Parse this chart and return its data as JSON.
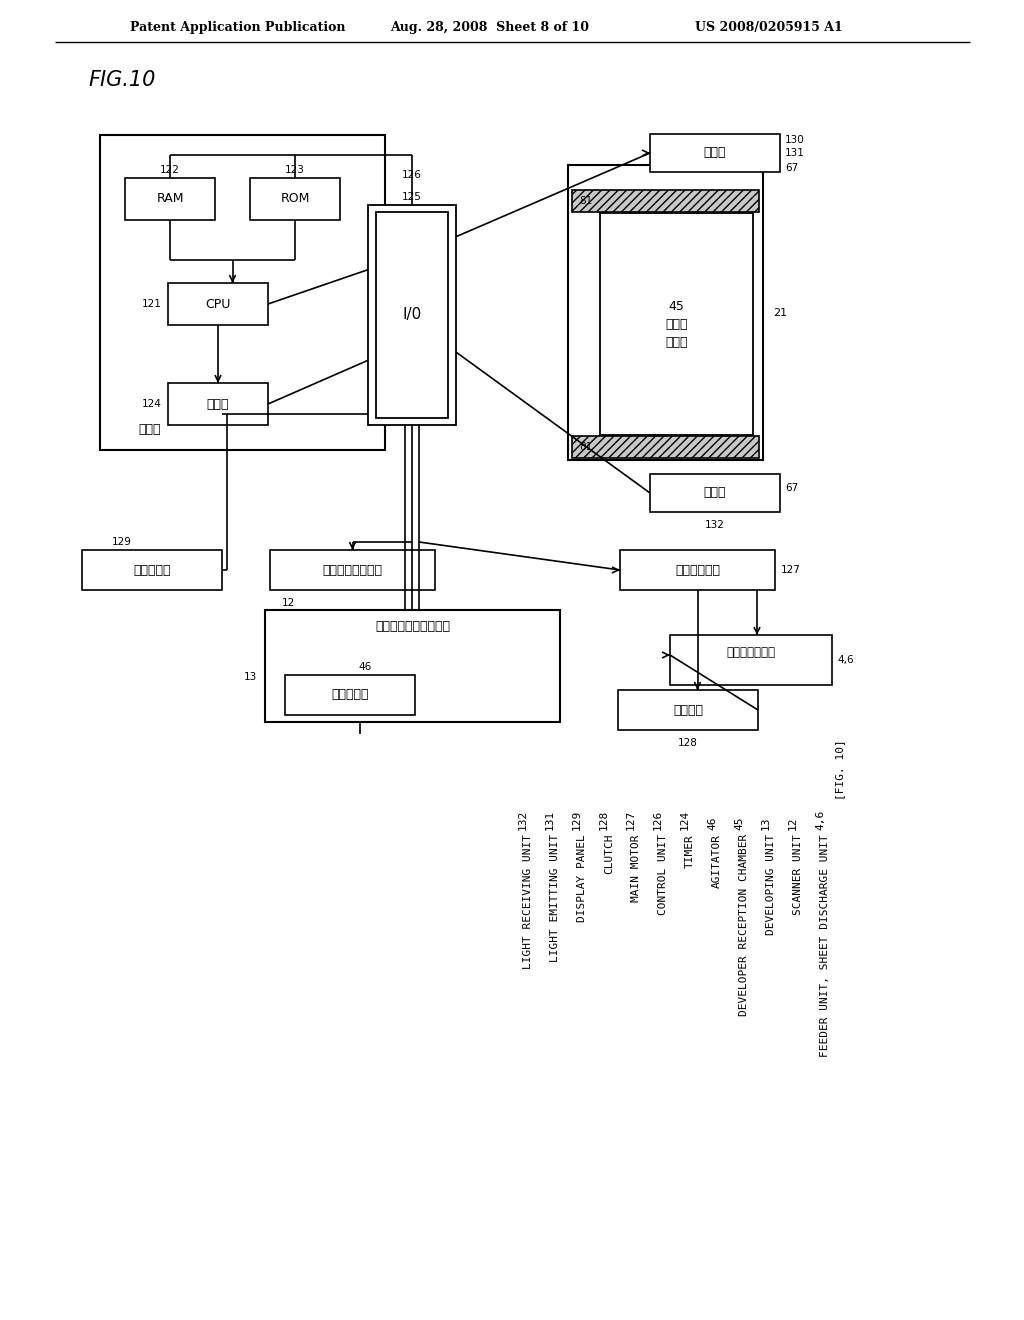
{
  "header_left": "Patent Application Publication",
  "header_mid": "Aug. 28, 2008  Sheet 8 of 10",
  "header_right": "US 2008/0205915 A1",
  "bg_color": "#ffffff",
  "legend": [
    [
      "[FIG. 10]",
      ""
    ],
    [
      "4,6",
      "FEEDER UNIT, SHEET DISCHARGE UNIT"
    ],
    [
      "12",
      "SCANNER UNIT"
    ],
    [
      "13",
      "DEVELOPING UNIT"
    ],
    [
      "45",
      "DEVELOPER RECEPTION CHAMBER"
    ],
    [
      "46",
      "AGITATOR"
    ],
    [
      "124",
      "TIMER"
    ],
    [
      "126",
      "CONTROL UNIT"
    ],
    [
      "127",
      "MAIN MOTOR"
    ],
    [
      "128",
      "CLUTCH"
    ],
    [
      "129",
      "DISPLAY PANEL"
    ],
    [
      "131",
      "LIGHT EMITTING UNIT"
    ],
    [
      "132",
      "LIGHT RECEIVING UNIT"
    ]
  ]
}
